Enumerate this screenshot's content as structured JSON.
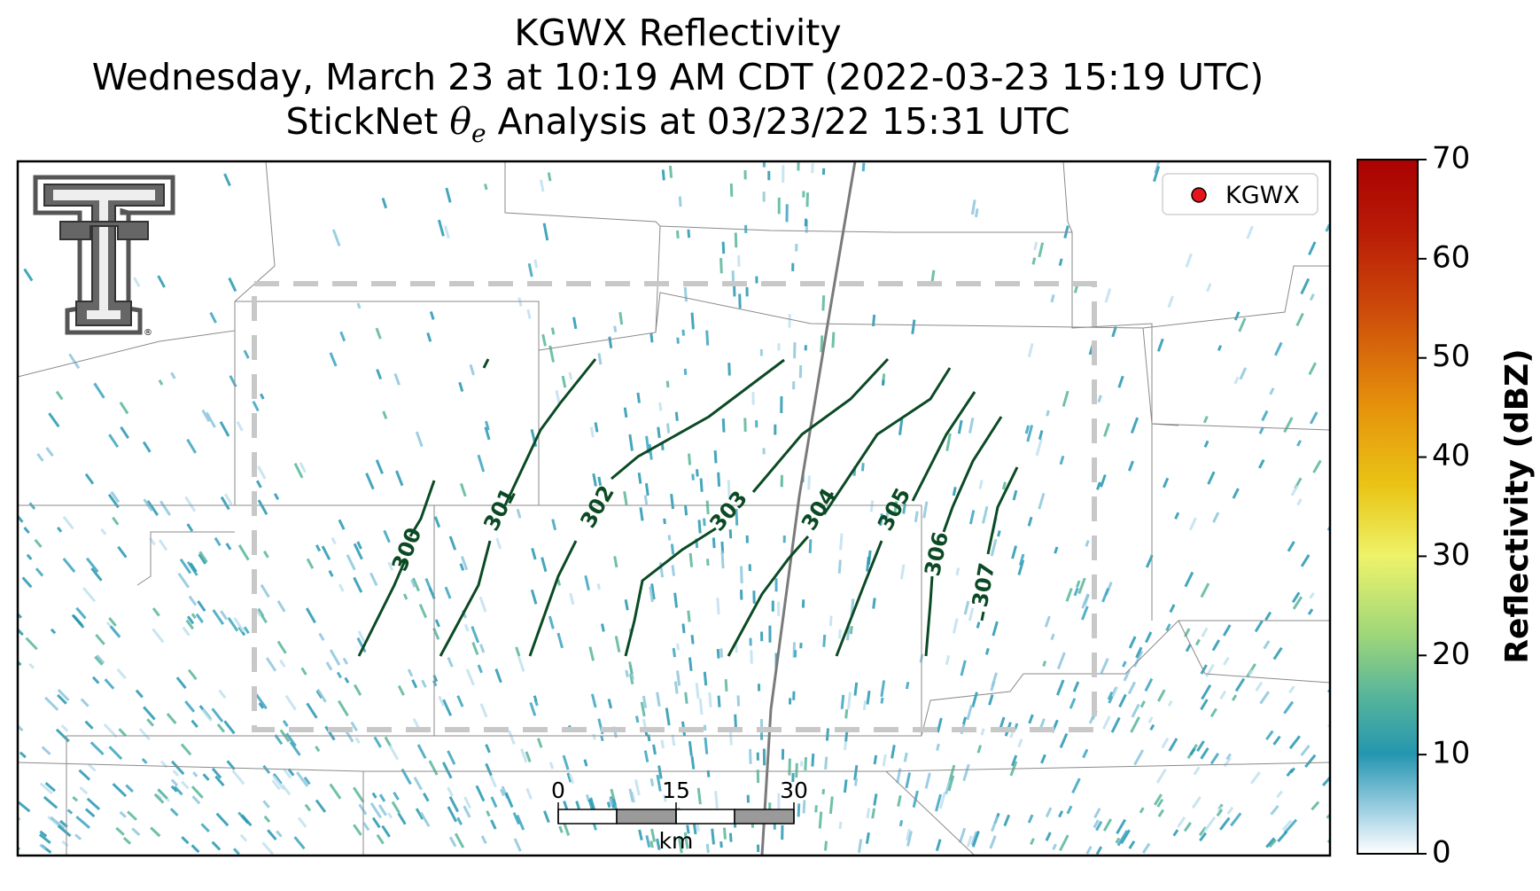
{
  "title": {
    "line1": "KGWX Reflectivity",
    "line2": "Wednesday, March 23 at 10:19 AM CDT (2022-03-23 15:19 UTC)",
    "line3_prefix": "StickNet ",
    "line3_symbol": "θ",
    "line3_sub": "e",
    "line3_suffix": " Analysis at 03/23/22 15:31 UTC"
  },
  "legend": {
    "label": "KGWX",
    "marker_color": "#e8141b"
  },
  "colorbar": {
    "label": "Reflectivity (dBZ)",
    "ticks": [
      "0",
      "10",
      "20",
      "30",
      "40",
      "50",
      "60",
      "70"
    ],
    "min": 0,
    "max": 70,
    "stops": [
      {
        "value": 0,
        "color": "#ffffff"
      },
      {
        "value": 4,
        "color": "#a8d4e6"
      },
      {
        "value": 10,
        "color": "#2596b0"
      },
      {
        "value": 16,
        "color": "#58b59a"
      },
      {
        "value": 22,
        "color": "#9ed67a"
      },
      {
        "value": 30,
        "color": "#eef36a"
      },
      {
        "value": 37,
        "color": "#e9c516"
      },
      {
        "value": 45,
        "color": "#e6930c"
      },
      {
        "value": 55,
        "color": "#cc4a0a"
      },
      {
        "value": 63,
        "color": "#b81a06"
      },
      {
        "value": 70,
        "color": "#aa0202"
      }
    ]
  },
  "scale_bar": {
    "ticks": [
      "0",
      "15",
      "30"
    ],
    "unit": "km"
  },
  "contour_labels": [
    "300",
    "301",
    "302",
    "303",
    "304",
    "305",
    "306",
    "307"
  ],
  "colors": {
    "contour": "#0b4a24",
    "domain_box": "#c8c8c8",
    "county_lines": "#8a8a8a",
    "highway": "#7a7a7a",
    "logo_dark": "#5a5a5a"
  },
  "icons": {
    "logo": "texas-tech-double-t-logo",
    "radar_marker": "red-dot-marker"
  }
}
